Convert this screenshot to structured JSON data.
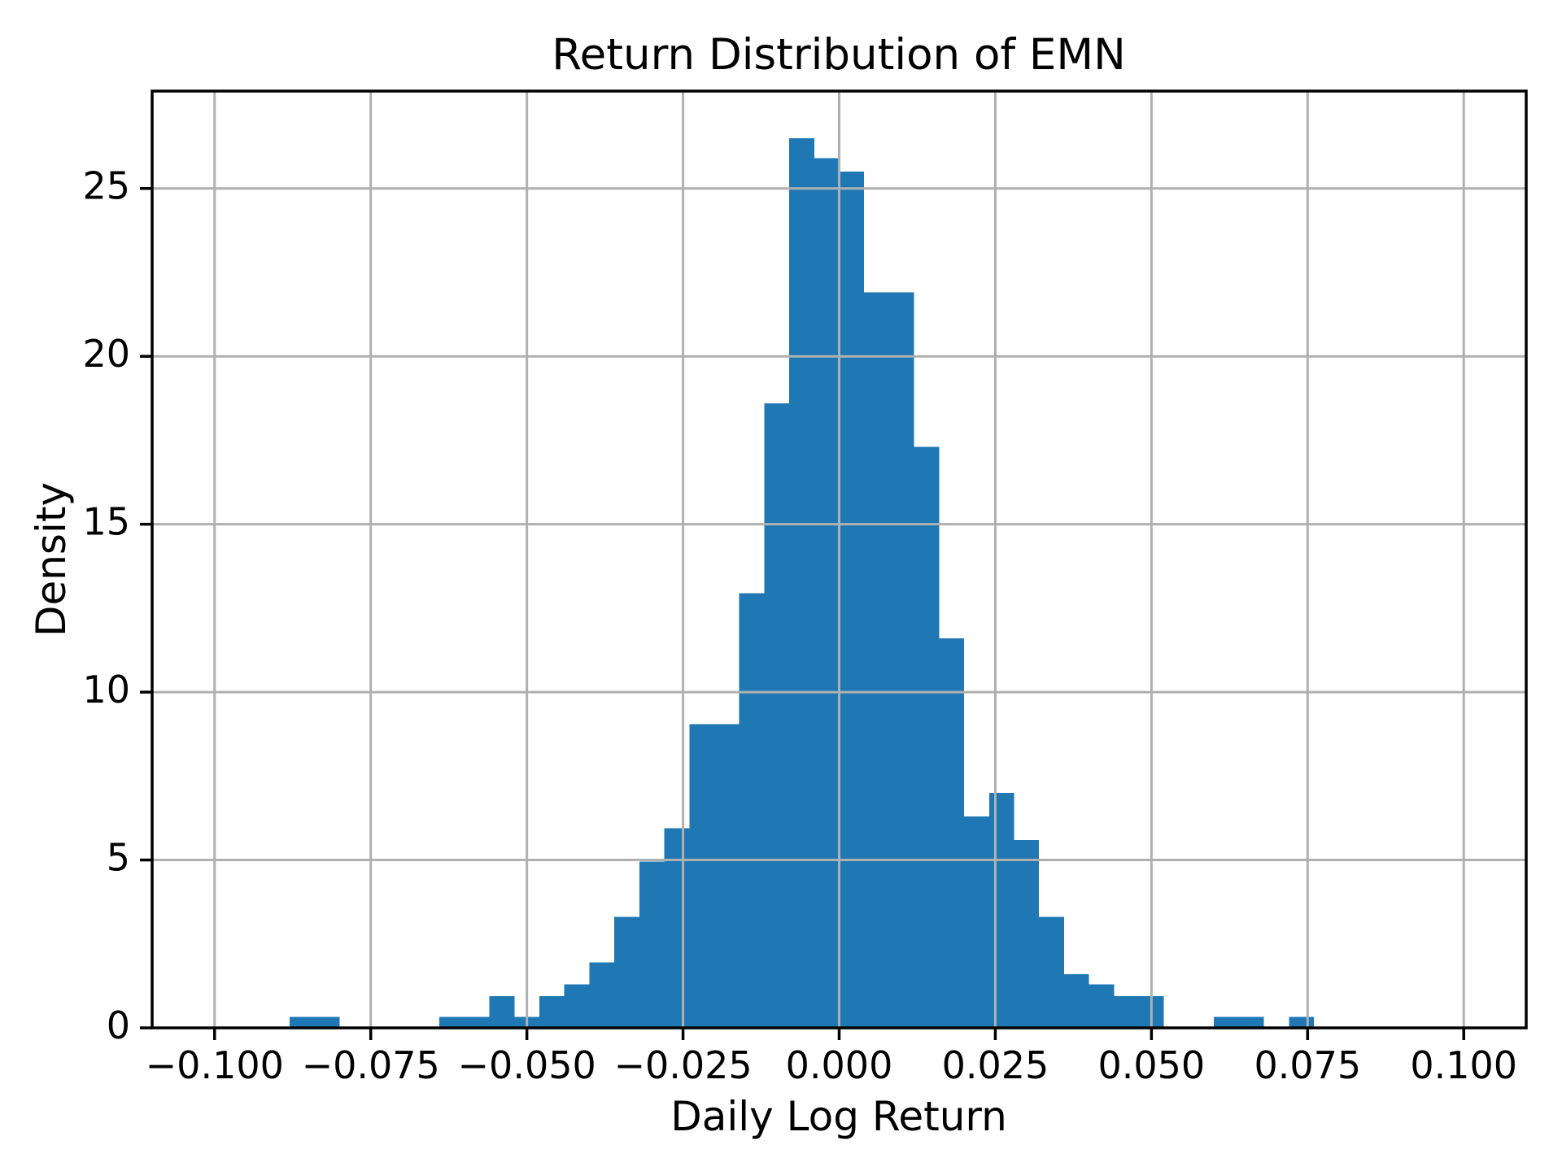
{
  "chart_data": {
    "type": "bar",
    "subtype": "histogram",
    "title": "Return Distribution of EMN",
    "xlabel": "Daily Log Return",
    "ylabel": "Density",
    "grid": true,
    "legend": false,
    "bar_color": "#1f77b4",
    "grid_color": "#b0b0b0",
    "axis_color": "#000000",
    "background_color": "#ffffff",
    "xlim": [
      -0.11,
      0.11
    ],
    "ylim": [
      0,
      27.9
    ],
    "bin_start": -0.088,
    "bin_width": 0.004,
    "densities": [
      0.33,
      0.33,
      0,
      0,
      0,
      0,
      0.33,
      0.33,
      0.95,
      0.33,
      0.95,
      1.3,
      1.95,
      3.3,
      4.95,
      5.95,
      9.05,
      9.05,
      12.95,
      18.6,
      26.5,
      25.9,
      25.5,
      21.9,
      21.9,
      17.3,
      11.6,
      6.3,
      7.0,
      5.6,
      3.3,
      1.6,
      1.3,
      0.95,
      0.95,
      0,
      0,
      0.33,
      0.33,
      0,
      0.33
    ],
    "x_ticks": [
      {
        "value": -0.1,
        "label": "−0.100"
      },
      {
        "value": -0.075,
        "label": "−0.075"
      },
      {
        "value": -0.05,
        "label": "−0.050"
      },
      {
        "value": -0.025,
        "label": "−0.025"
      },
      {
        "value": 0.0,
        "label": "0.000"
      },
      {
        "value": 0.025,
        "label": "0.025"
      },
      {
        "value": 0.05,
        "label": "0.050"
      },
      {
        "value": 0.075,
        "label": "0.075"
      },
      {
        "value": 0.1,
        "label": "0.100"
      }
    ],
    "y_ticks": [
      {
        "value": 0,
        "label": "0"
      },
      {
        "value": 5,
        "label": "5"
      },
      {
        "value": 10,
        "label": "10"
      },
      {
        "value": 15,
        "label": "15"
      },
      {
        "value": 20,
        "label": "20"
      },
      {
        "value": 25,
        "label": "25"
      }
    ]
  }
}
